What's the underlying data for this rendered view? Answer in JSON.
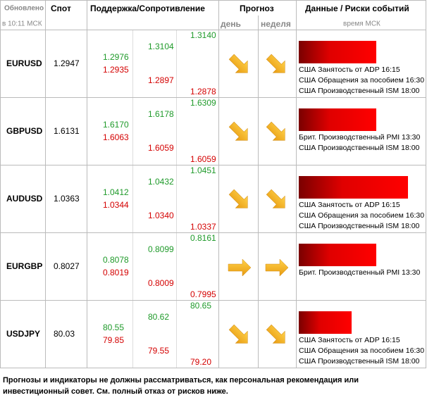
{
  "header": {
    "updated": "Обновлено",
    "updated_time": "в 10:11 МСК",
    "spot": "Спот",
    "levels": "Поддержка/Сопротивление",
    "forecast": "Прогноз",
    "day": "день",
    "week": "неделя",
    "events": "Данные / Риски событий",
    "events_time": "время МСК"
  },
  "rows": [
    {
      "pair": "EURUSD",
      "spot": "1.2947",
      "levels": [
        [
          "1.2976",
          "1.2935"
        ],
        [
          "1.3104",
          "1.2897"
        ],
        [
          "1.3140",
          "1.2878"
        ]
      ],
      "events": [
        "США Занятость от ADP 16:15",
        "США Обращения за пособием 16:30",
        "США Производственный ISM 18:00"
      ]
    },
    {
      "pair": "GBPUSD",
      "spot": "1.6131",
      "levels": [
        [
          "1.6170",
          "1.6063"
        ],
        [
          "1.6178",
          "1.6059"
        ],
        [
          "1.6309",
          "1.6059"
        ]
      ],
      "events": [
        "Брит. Производственный PMI 13:30",
        "США Производственный ISM 18:00"
      ]
    },
    {
      "pair": "AUDUSD",
      "spot": "1.0363",
      "levels": [
        [
          "1.0412",
          "1.0344"
        ],
        [
          "1.0432",
          "1.0340"
        ],
        [
          "1.0451",
          "1.0337"
        ]
      ],
      "events": [
        "США Занятость от ADP 16:15",
        "США Обращения за пособием 16:30",
        "США Производственный ISM 18:00"
      ]
    },
    {
      "pair": "EURGBP",
      "spot": "0.8027",
      "levels": [
        [
          "0.8078",
          "0.8019"
        ],
        [
          "0.8099",
          "0.8009"
        ],
        [
          "0.8161",
          "0.7995"
        ]
      ],
      "events": [
        "Брит. Производственный PMI 13:30"
      ]
    },
    {
      "pair": "USDJPY",
      "spot": "80.03",
      "levels": [
        [
          "80.55",
          "79.85"
        ],
        [
          "80.62",
          "79.55"
        ],
        [
          "80.65",
          "79.20"
        ]
      ],
      "events": [
        "США Занятость от ADP 16:15",
        "США Обращения за пособием 16:30",
        "США Производственный ISM 18:00"
      ]
    }
  ],
  "footer": "Прогнозы и индикаторы не должны рассматриваться, как персональная рекомендация или инвестиционный совет. См. полный отказ от рисков ниже."
}
